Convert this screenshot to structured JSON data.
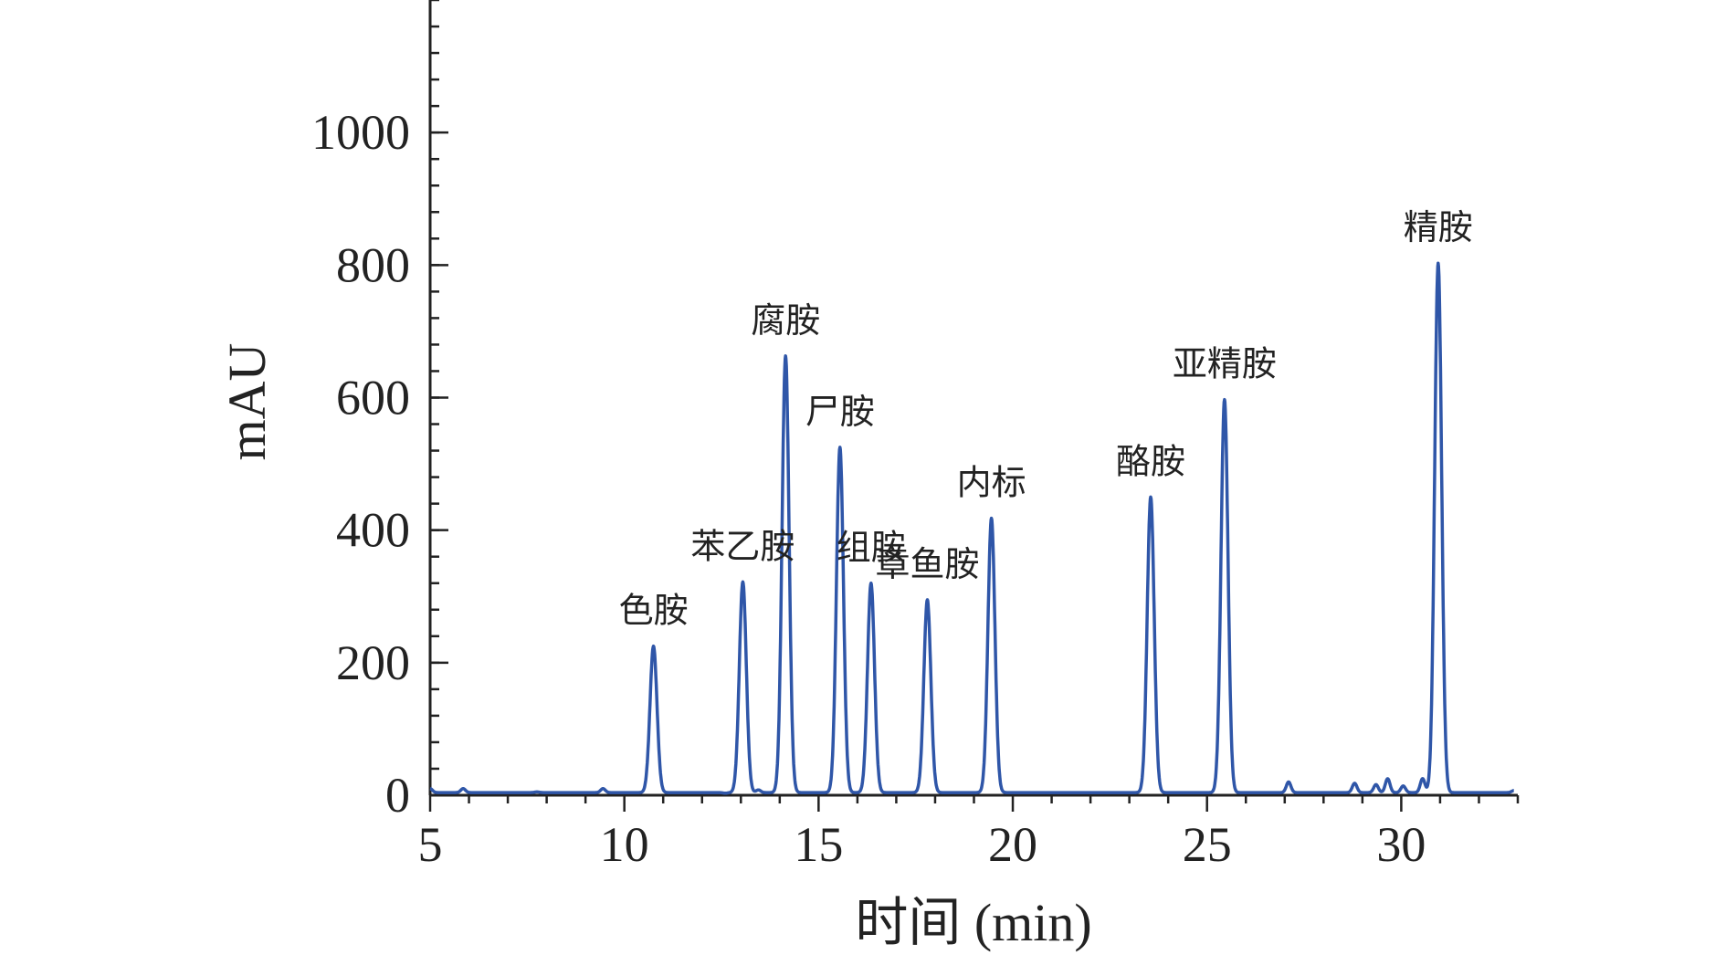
{
  "chart_data": {
    "type": "line",
    "xlabel": "时间 (min)",
    "ylabel": "mAU",
    "xlim": [
      5,
      33
    ],
    "ylim": [
      0,
      1200
    ],
    "x_ticks": [
      5,
      10,
      15,
      20,
      25,
      30
    ],
    "y_ticks": [
      0,
      200,
      400,
      600,
      800,
      1000
    ],
    "y_minor_step": 40,
    "grid": false,
    "line_color": "#2f56a8",
    "baseline_noise": [
      {
        "x": 5.0,
        "y": 10
      },
      {
        "x": 5.85,
        "y": 10
      },
      {
        "x": 6.65,
        "y": 4
      },
      {
        "x": 7.05,
        "y": 4
      },
      {
        "x": 7.75,
        "y": 5
      },
      {
        "x": 9.0,
        "y": 4
      },
      {
        "x": 9.45,
        "y": 10
      },
      {
        "x": 12.6,
        "y": 3
      },
      {
        "x": 13.45,
        "y": 8
      },
      {
        "x": 26.2,
        "y": 4
      },
      {
        "x": 27.1,
        "y": 20
      },
      {
        "x": 28.8,
        "y": 18
      },
      {
        "x": 29.35,
        "y": 16
      },
      {
        "x": 29.65,
        "y": 25
      },
      {
        "x": 30.05,
        "y": 14
      },
      {
        "x": 30.55,
        "y": 25
      },
      {
        "x": 32.9,
        "y": 7
      }
    ],
    "peaks": [
      {
        "name": "色胺",
        "x": 10.75,
        "y": 225
      },
      {
        "name": "苯乙胺",
        "x": 13.05,
        "y": 322
      },
      {
        "name": "腐胺",
        "x": 14.15,
        "y": 663
      },
      {
        "name": "尸胺",
        "x": 15.55,
        "y": 525
      },
      {
        "name": "组胺",
        "x": 16.35,
        "y": 320
      },
      {
        "name": "章鱼胺",
        "x": 17.8,
        "y": 295
      },
      {
        "name": "内标",
        "x": 19.45,
        "y": 418
      },
      {
        "name": "酪胺",
        "x": 23.55,
        "y": 450
      },
      {
        "name": "亚精胺",
        "x": 25.45,
        "y": 597
      },
      {
        "name": "精胺",
        "x": 30.95,
        "y": 803
      }
    ]
  }
}
